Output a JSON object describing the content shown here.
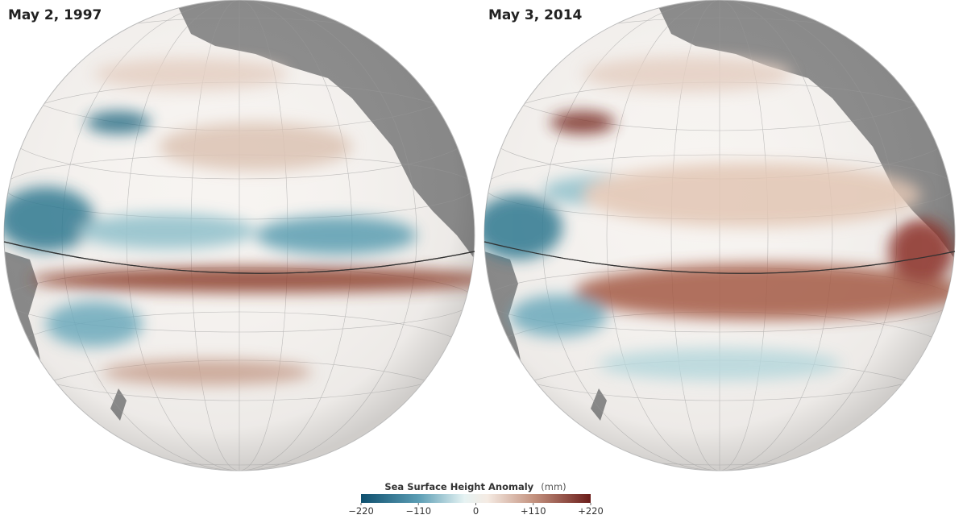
{
  "panels": [
    {
      "title": "May 2, 1997"
    },
    {
      "title": "May 3, 2014"
    }
  ],
  "colorbar": {
    "title": "Sea Surface Height Anomaly",
    "unit": "(mm)",
    "range": [
      -220,
      220
    ],
    "ticks": [
      {
        "value": -220,
        "label": "−220"
      },
      {
        "value": -110,
        "label": "−110"
      },
      0,
      {
        "value": 110,
        "label": "+110"
      },
      {
        "value": 220,
        "label": "+220"
      }
    ]
  }
}
